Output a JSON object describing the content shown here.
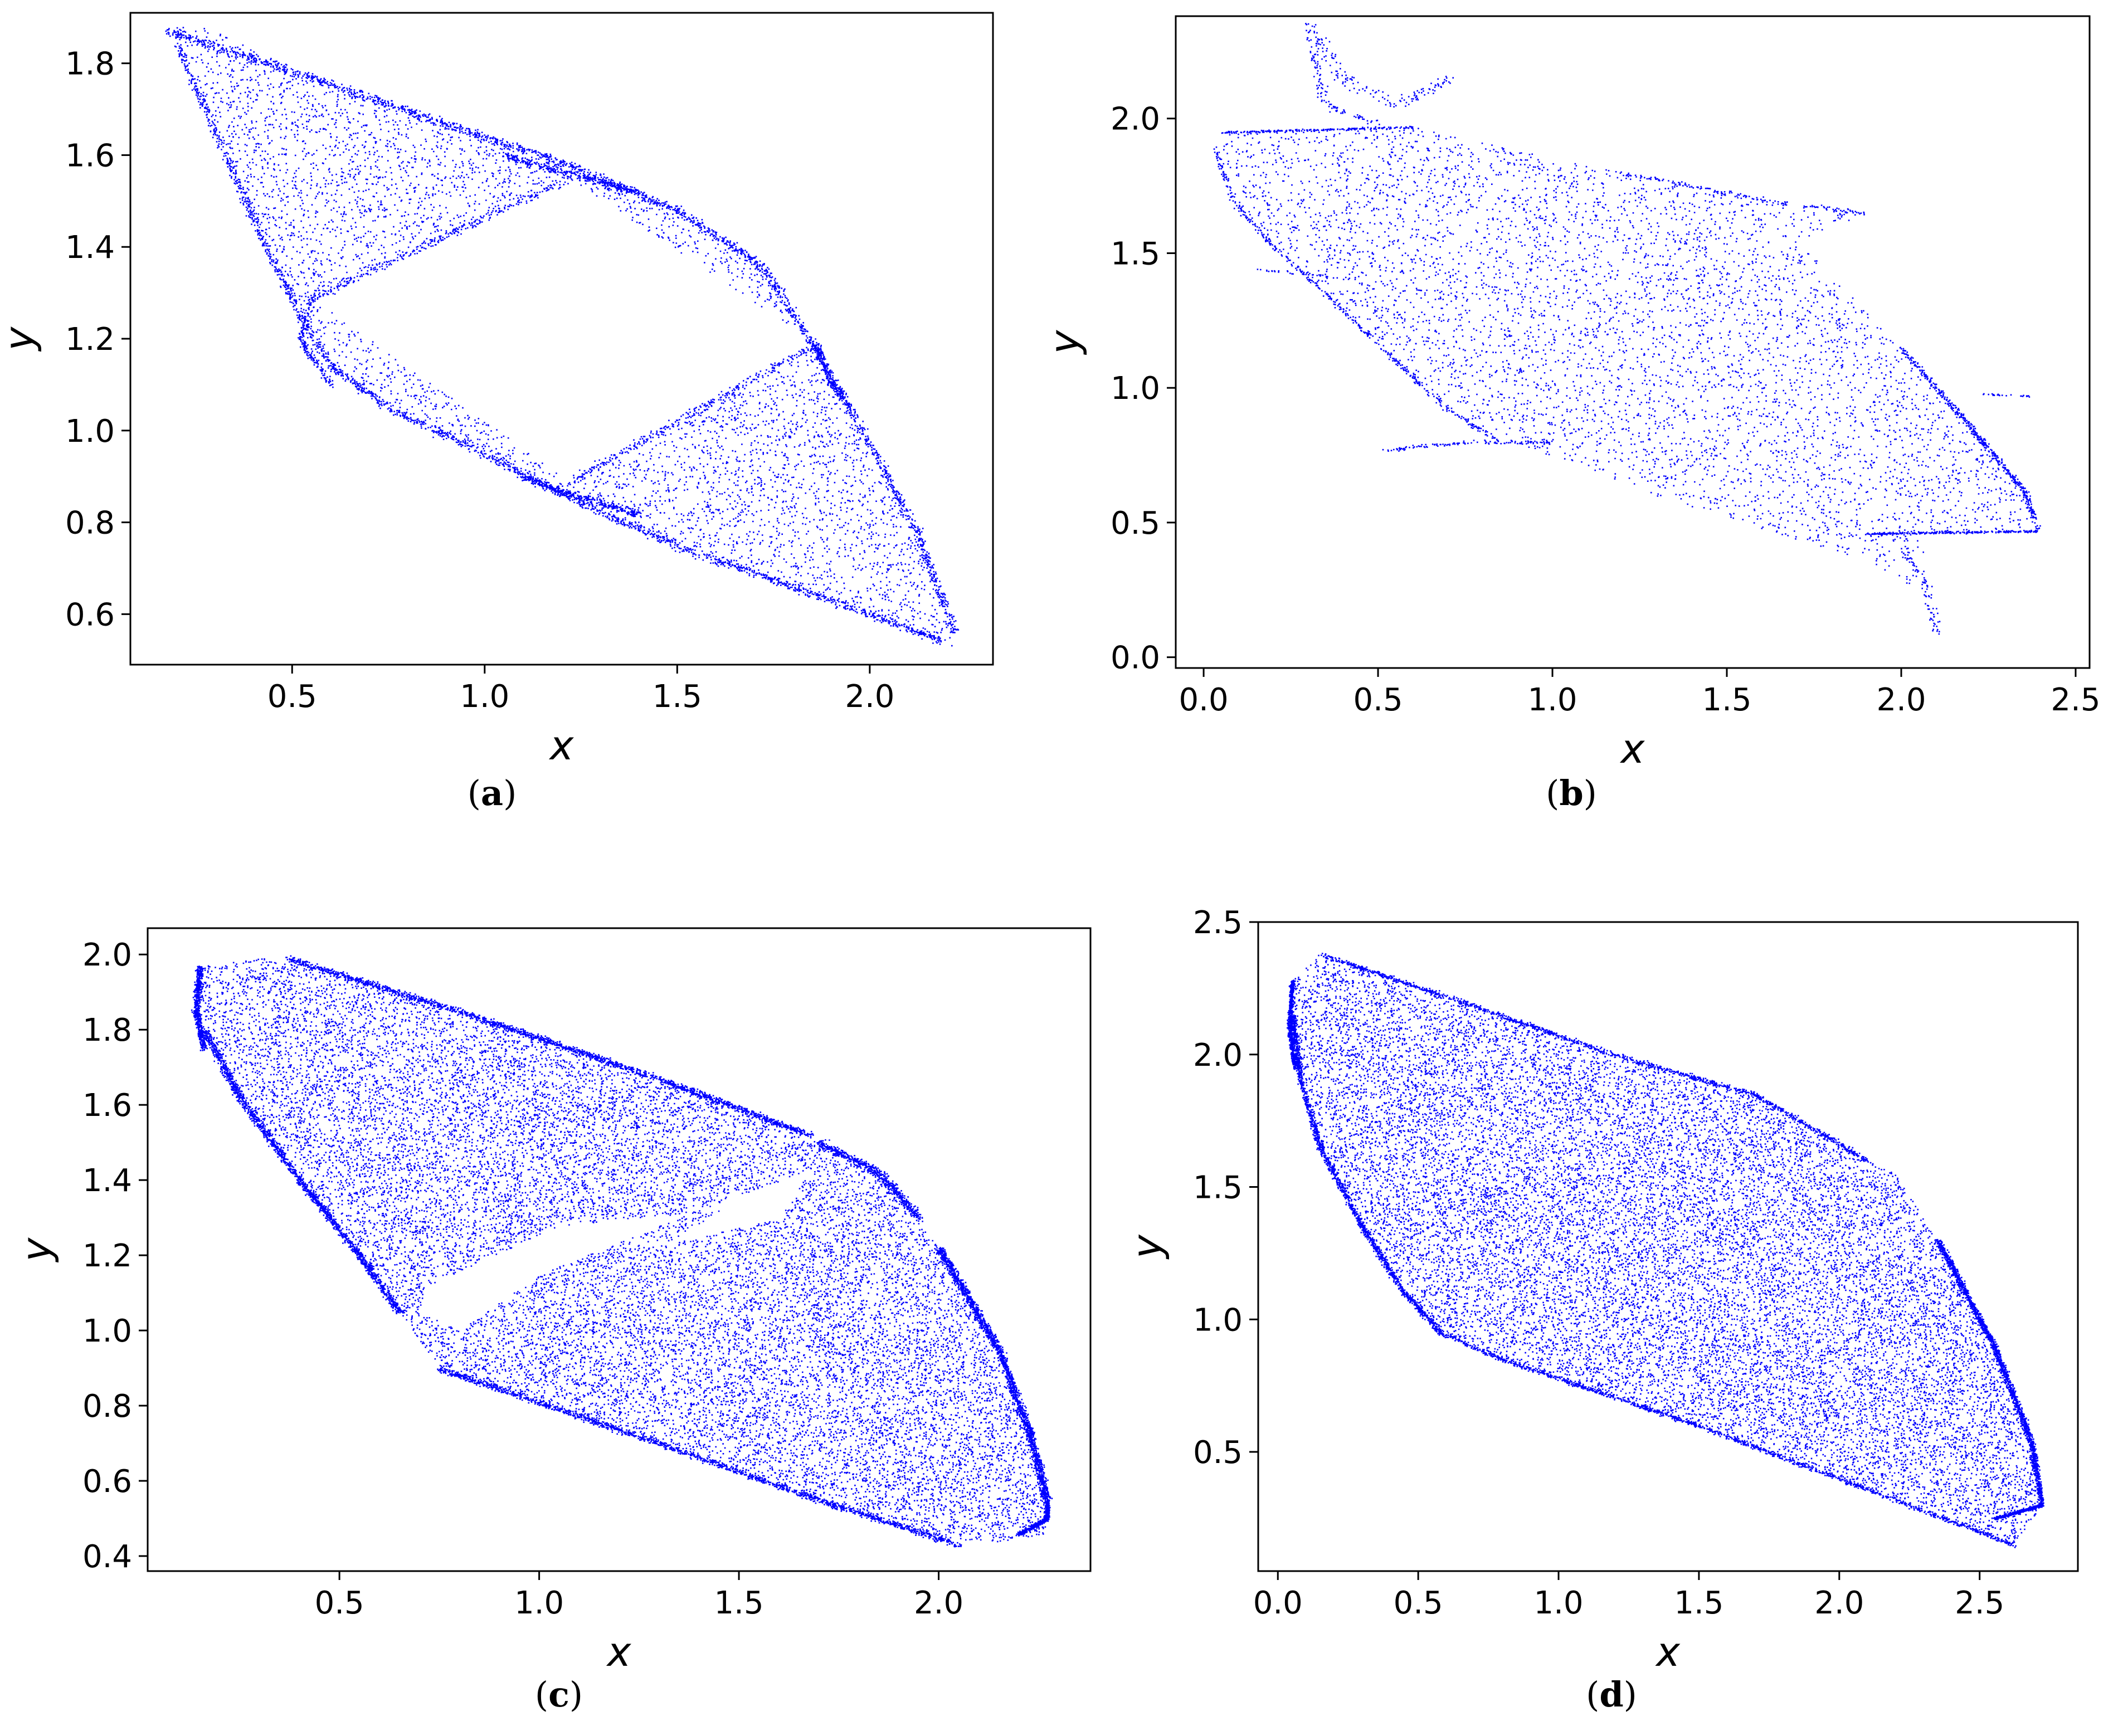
{
  "figure": {
    "captions": [
      "(a)",
      "(b)",
      "(c)",
      "(d)"
    ]
  },
  "chart_data": [
    {
      "type": "scatter",
      "panel": "a",
      "caption": "(a)",
      "color": "#0000ff",
      "xlabel": "x",
      "ylabel": "y",
      "xlim": [
        0.08,
        2.32
      ],
      "ylim": [
        0.49,
        1.91
      ],
      "xticks": [
        0.5,
        1.0,
        1.5,
        2.0
      ],
      "xtick_labels": [
        "0.5",
        "1.0",
        "1.5",
        "2.0"
      ],
      "yticks": [
        0.6,
        0.8,
        1.0,
        1.2,
        1.4,
        1.6,
        1.8
      ],
      "ytick_labels": [
        "0.6",
        "0.8",
        "1.0",
        "1.2",
        "1.4",
        "1.6",
        "1.8"
      ],
      "grid": false,
      "legend": "none",
      "approx_points": 9000,
      "x": [
        0.18,
        0.22,
        0.35,
        0.55,
        0.62,
        0.8,
        1.0,
        1.22,
        1.5,
        1.85,
        2.1,
        2.22,
        2.2,
        2.0,
        1.7,
        1.4,
        1.23,
        1.2,
        0.95,
        0.75,
        0.6,
        0.5,
        0.35,
        1.22,
        0.55,
        1.8
      ],
      "y": [
        1.87,
        1.89,
        1.84,
        1.76,
        1.75,
        1.69,
        1.64,
        1.58,
        1.48,
        1.19,
        0.78,
        0.55,
        0.54,
        0.6,
        0.69,
        0.78,
        0.85,
        0.88,
        0.98,
        1.06,
        1.15,
        1.27,
        1.55,
        1.55,
        1.3,
        1.1
      ]
    },
    {
      "type": "scatter",
      "panel": "b",
      "caption": "(b)",
      "color": "#0000ff",
      "xlabel": "x",
      "ylabel": "y",
      "xlim": [
        -0.08,
        2.54
      ],
      "ylim": [
        -0.04,
        2.38
      ],
      "xticks": [
        0.0,
        0.5,
        1.0,
        1.5,
        2.0,
        2.5
      ],
      "xtick_labels": [
        "0.0",
        "0.5",
        "1.0",
        "1.5",
        "2.0",
        "2.5"
      ],
      "yticks": [
        0.0,
        0.5,
        1.0,
        1.5,
        2.0
      ],
      "ytick_labels": [
        "0.0",
        "0.5",
        "1.0",
        "1.5",
        "2.0"
      ],
      "grid": false,
      "legend": "none",
      "approx_points": 6000,
      "x": [
        0.05,
        0.3,
        0.7,
        1.5,
        1.9,
        2.1,
        2.39,
        2.1,
        0.52,
        0.1,
        0.9
      ],
      "y": [
        1.95,
        2.35,
        2.15,
        1.7,
        1.65,
        0.08,
        0.48,
        0.5,
        0.77,
        1.45,
        1.0
      ]
    },
    {
      "type": "scatter",
      "panel": "c",
      "caption": "(c)",
      "color": "#0000ff",
      "xlabel": "x",
      "ylabel": "y",
      "xlim": [
        0.02,
        2.38
      ],
      "ylim": [
        0.36,
        2.07
      ],
      "xticks": [
        0.5,
        1.0,
        1.5,
        2.0
      ],
      "xtick_labels": [
        "0.5",
        "1.0",
        "1.5",
        "2.0"
      ],
      "yticks": [
        0.4,
        0.6,
        0.8,
        1.0,
        1.2,
        1.4,
        1.6,
        1.8,
        2.0
      ],
      "ytick_labels": [
        "0.4",
        "0.6",
        "0.8",
        "1.0",
        "1.2",
        "1.4",
        "1.6",
        "1.8",
        "2.0"
      ],
      "grid": false,
      "legend": "none",
      "approx_points": 30000,
      "x": [
        0.15,
        0.37,
        1.68,
        2.25,
        2.05,
        0.75,
        0.65
      ],
      "y": [
        1.97,
        1.99,
        1.52,
        0.45,
        0.44,
        0.9,
        1.05
      ]
    },
    {
      "type": "scatter",
      "panel": "d",
      "caption": "(d)",
      "color": "#0000ff",
      "xlabel": "x",
      "ylabel": "y",
      "xlim": [
        -0.07,
        2.85
      ],
      "ylim": [
        0.05,
        2.5
      ],
      "xticks": [
        0.0,
        0.5,
        1.0,
        1.5,
        2.0,
        2.5
      ],
      "xtick_labels": [
        "0.0",
        "0.5",
        "1.0",
        "1.5",
        "2.0",
        "2.5"
      ],
      "yticks": [
        0.5,
        1.0,
        1.5,
        2.0,
        2.5
      ],
      "ytick_labels": [
        "0.5",
        "1.0",
        "1.5",
        "2.0",
        "2.5"
      ],
      "grid": false,
      "legend": "none",
      "approx_points": 30000,
      "x": [
        0.1,
        0.15,
        2.1,
        2.75,
        2.65,
        0.6
      ],
      "y": [
        2.28,
        2.38,
        1.58,
        0.25,
        0.15,
        0.95
      ]
    }
  ]
}
